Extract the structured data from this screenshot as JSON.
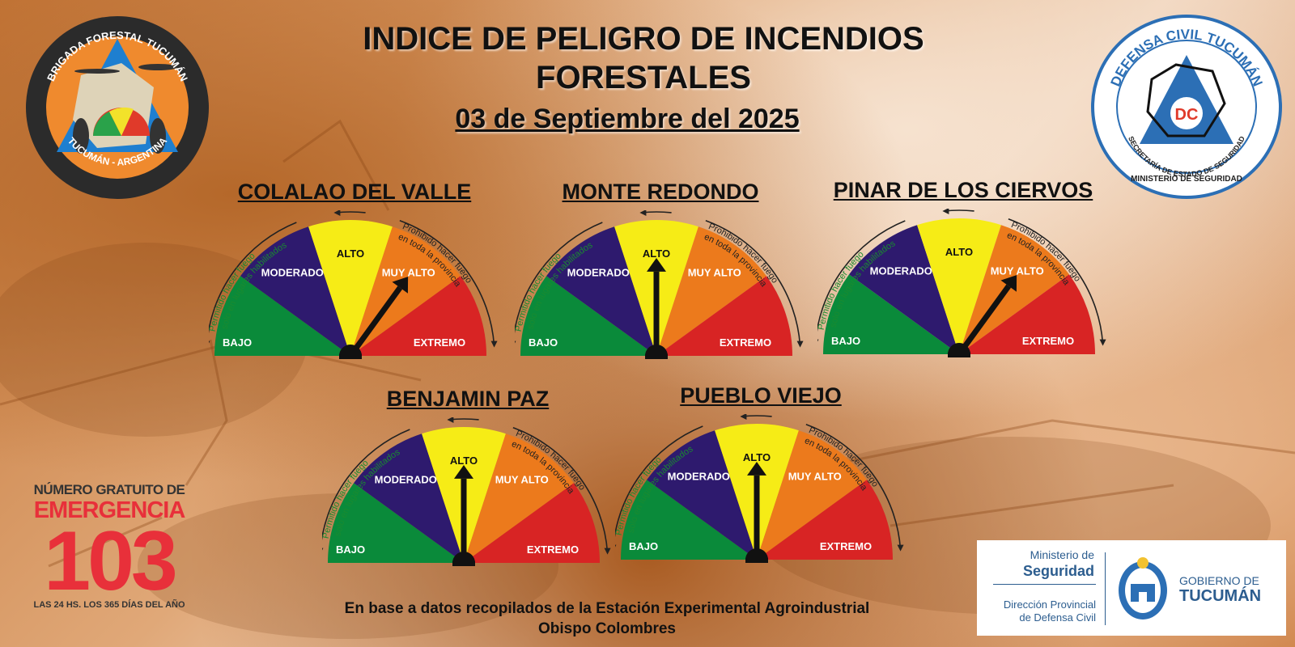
{
  "header": {
    "title_line1": "INDICE DE PELIGRO DE INCENDIOS",
    "title_line2": "FORESTALES",
    "date": "03 de Septiembre del 2025"
  },
  "logos": {
    "brigada": "BRIGADA FORESTAL TUCUMÁN",
    "brigada_sub": "TUCUMÁN - ARGENTINA",
    "defensa_civil": "DEFENSA CIVIL TUCUMÁN",
    "dc_initials": "DC",
    "defensa_civil_sub1": "SECRETARÍA DE ESTADO DE SEGURIDAD",
    "defensa_civil_sub2": "MINISTERIO DE SEGURIDAD"
  },
  "scale_labels": {
    "bajo": "BAJO",
    "moderado": "MODERADO",
    "alto": "ALTO",
    "muy_alto": "MUY ALTO",
    "extremo": "EXTREMO",
    "permitido_line1": "Permitido hacer fuego",
    "permitido_line2": "solo en lugares habilitados",
    "prohibido_line1": "Prohibido hacer fuego",
    "prohibido_line2": "en toda la provincia"
  },
  "scale_colors": {
    "bajo": "#0a8a3a",
    "moderado": "#2e1a6e",
    "alto": "#f6ec16",
    "muy_alto": "#ec7a1c",
    "extremo": "#d82424"
  },
  "gauges": [
    {
      "name": "COLALAO DEL VALLE",
      "level": "MUY ALTO"
    },
    {
      "name": "MONTE REDONDO",
      "level": "ALTO"
    },
    {
      "name": "PINAR DE LOS CIERVOS",
      "level": "MUY ALTO"
    },
    {
      "name": "BENJAMIN PAZ",
      "level": "ALTO"
    },
    {
      "name": "PUEBLO VIEJO",
      "level": "ALTO"
    }
  ],
  "emergency": {
    "line1": "NÚMERO GRATUITO DE",
    "line2": "EMERGENCIA",
    "number": "103",
    "line4": "LAS 24 HS. LOS 365 DÍAS DEL AÑO"
  },
  "footer": {
    "line1": "En base a datos recopilados de la Estación Experimental Agroindustrial",
    "line2": "Obispo Colombres"
  },
  "ministry": {
    "line1": "Ministerio de",
    "line2": "Seguridad",
    "line3": "Dirección Provincial",
    "line4": "de Defensa Civil",
    "gob1": "GOBIERNO DE",
    "gob2": "TUCUMÁN"
  }
}
